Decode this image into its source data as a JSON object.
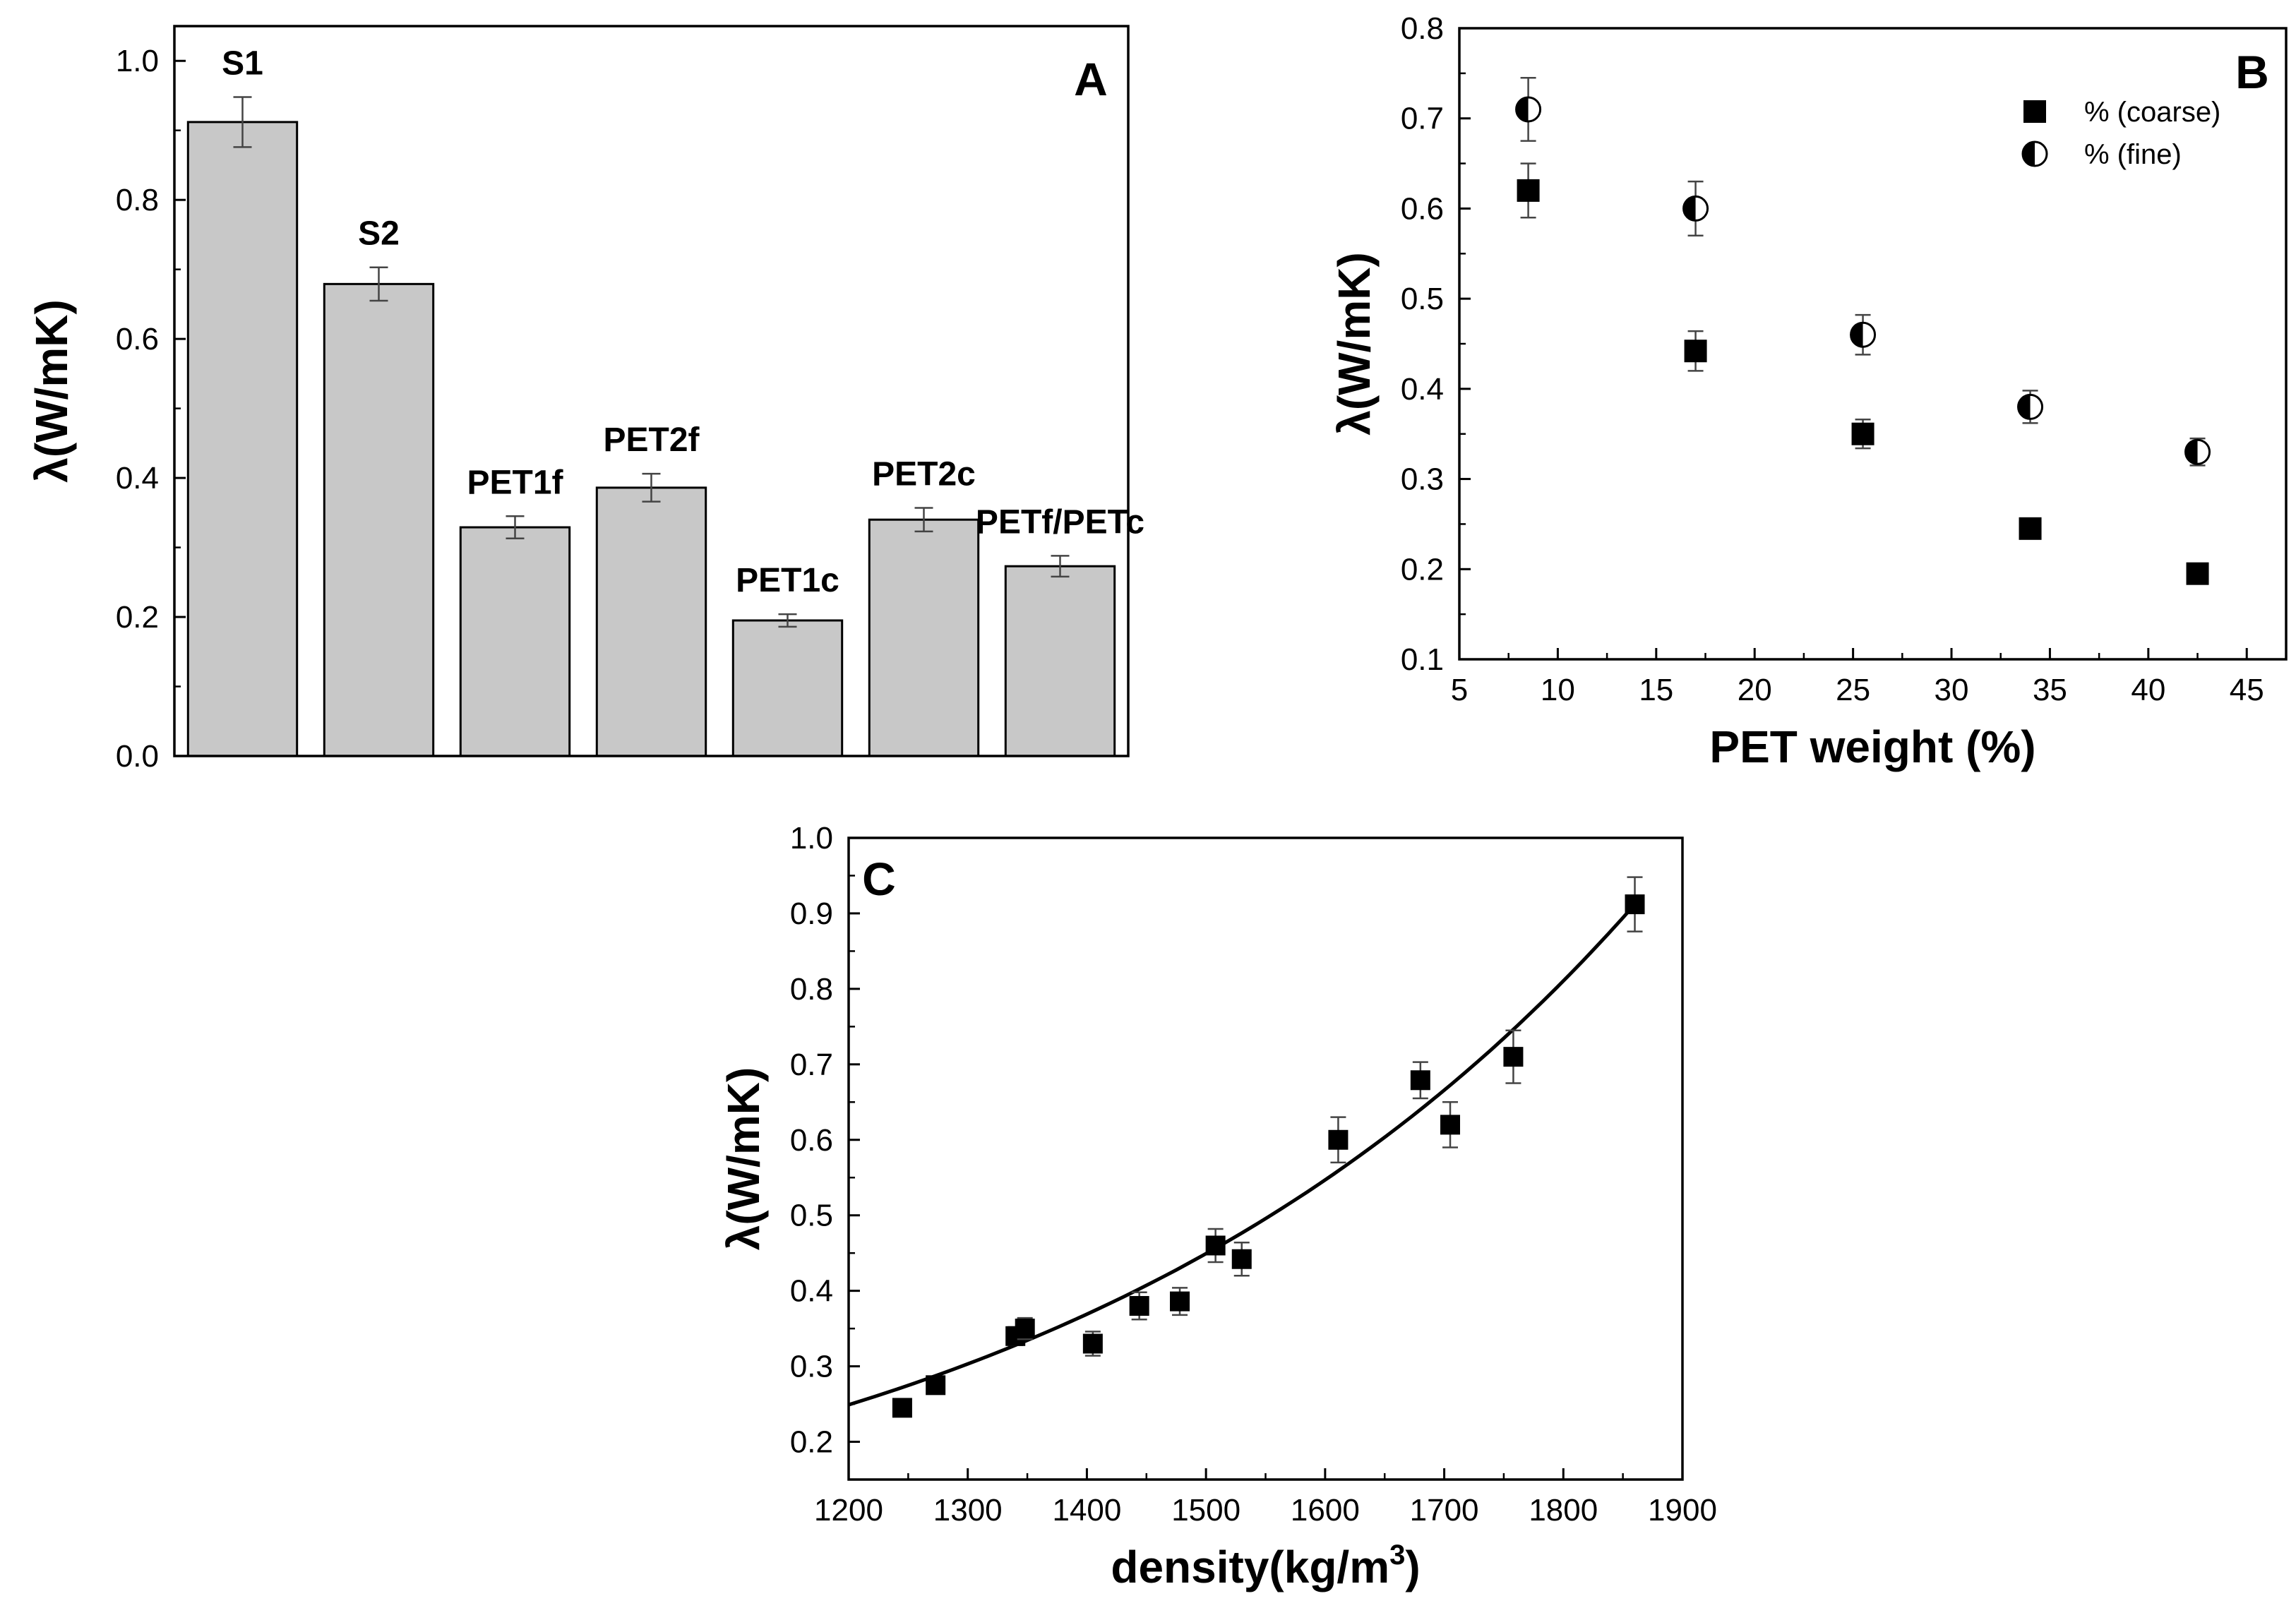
{
  "chart_data": [
    {
      "panel": "A",
      "type": "bar",
      "ylabel": "λ(W/mK)",
      "xlabel": "",
      "ylim": [
        0,
        1.05
      ],
      "yticks": [
        "0.0",
        "0.2",
        "0.4",
        "0.6",
        "0.8",
        "1.0"
      ],
      "categories": [
        "S1",
        "S2",
        "PET1f",
        "PET2f",
        "PET1c",
        "PET2c",
        "PETf/PETc"
      ],
      "values": [
        0.912,
        0.679,
        0.329,
        0.386,
        0.195,
        0.34,
        0.273
      ],
      "errors": [
        0.036,
        0.024,
        0.016,
        0.02,
        0.009,
        0.017,
        0.015
      ],
      "bar_color": "#c8c8c8"
    },
    {
      "panel": "B",
      "type": "scatter",
      "xlabel": "PET weight (%)",
      "ylabel": "λ(W/mK)",
      "xlim": [
        5,
        47
      ],
      "ylim": [
        0.1,
        0.8
      ],
      "xticks": [
        "5",
        "10",
        "15",
        "20",
        "25",
        "30",
        "35",
        "40",
        "45"
      ],
      "yticks": [
        "0.1",
        "0.2",
        "0.3",
        "0.4",
        "0.5",
        "0.6",
        "0.7",
        "0.8"
      ],
      "legend_position": "top-right",
      "series": [
        {
          "name": "% (coarse)",
          "marker": "square",
          "x": [
            8.5,
            17,
            25.5,
            34,
            42.5
          ],
          "y": [
            0.62,
            0.442,
            0.35,
            0.245,
            0.195
          ],
          "err": [
            0.03,
            0.022,
            0.016,
            0.0,
            0.0
          ]
        },
        {
          "name": "% (fine)",
          "marker": "half-circle",
          "x": [
            8.5,
            17,
            25.5,
            34,
            42.5
          ],
          "y": [
            0.71,
            0.6,
            0.46,
            0.38,
            0.33
          ],
          "err": [
            0.035,
            0.03,
            0.022,
            0.018,
            0.015
          ]
        }
      ]
    },
    {
      "panel": "C",
      "type": "scatter",
      "xlabel": "density(kg/m",
      "xlabel_sup": "3",
      "xlabel_end": ")",
      "ylabel": "λ(W/mK)",
      "xlim": [
        1200,
        1900
      ],
      "ylim": [
        0.15,
        1.0
      ],
      "xticks": [
        "1200",
        "1300",
        "1400",
        "1500",
        "1600",
        "1700",
        "1800",
        "1900"
      ],
      "yticks": [
        "0.2",
        "0.3",
        "0.4",
        "0.5",
        "0.6",
        "0.7",
        "0.8",
        "0.9",
        "1.0"
      ],
      "series": [
        {
          "marker": "square",
          "x": [
            1245,
            1273,
            1340,
            1348,
            1405,
            1444,
            1478,
            1508,
            1530,
            1611,
            1680,
            1705,
            1758,
            1860
          ],
          "y": [
            0.245,
            0.275,
            0.34,
            0.35,
            0.33,
            0.38,
            0.386,
            0.46,
            0.442,
            0.6,
            0.679,
            0.62,
            0.71,
            0.912
          ],
          "err": [
            0.0,
            0.008,
            0.012,
            0.014,
            0.016,
            0.018,
            0.018,
            0.022,
            0.022,
            0.03,
            0.024,
            0.03,
            0.035,
            0.036
          ]
        }
      ],
      "fit": {
        "type": "exponential",
        "x": [
          1200,
          1860
        ],
        "y": [
          0.249,
          0.912
        ]
      }
    }
  ]
}
